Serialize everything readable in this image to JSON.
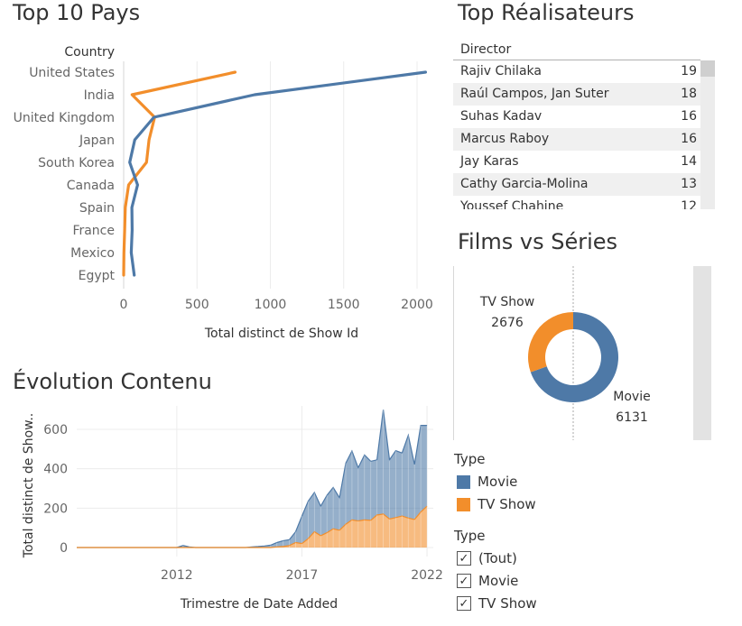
{
  "titles": {
    "top_countries": "Top 10 Pays",
    "top_directors": "Top Réalisateurs",
    "donut": "Films vs Séries",
    "evolution": "Évolution Contenu"
  },
  "colors": {
    "movie": "#4e79a7",
    "tv_show": "#f28e2b"
  },
  "directors": {
    "header": "Director",
    "rows": [
      {
        "name": "Rajiv Chilaka",
        "count": "19"
      },
      {
        "name": "Raúl Campos, Jan Suter",
        "count": "18"
      },
      {
        "name": "Suhas Kadav",
        "count": "16"
      },
      {
        "name": "Marcus Raboy",
        "count": "16"
      },
      {
        "name": "Jay Karas",
        "count": "14"
      },
      {
        "name": "Cathy Garcia-Molina",
        "count": "13"
      },
      {
        "name": "Youssef Chahine",
        "count": "12"
      }
    ]
  },
  "legend_type": {
    "title": "Type",
    "items": [
      {
        "label": "Movie",
        "color": "#4e79a7"
      },
      {
        "label": "TV Show",
        "color": "#f28e2b"
      }
    ]
  },
  "filter_type": {
    "title": "Type",
    "items": [
      {
        "label": "(Tout)",
        "checked": true
      },
      {
        "label": "Movie",
        "checked": true
      },
      {
        "label": "TV Show",
        "checked": true
      }
    ]
  },
  "chart_data": [
    {
      "id": "countries",
      "type": "line",
      "title": "Top 10 Pays",
      "ylabel": "Country",
      "xlabel": "Total distinct de Show Id",
      "categories": [
        "United States",
        "India",
        "United Kingdom",
        "Japan",
        "South Korea",
        "Canada",
        "Spain",
        "France",
        "Mexico",
        "Egypt"
      ],
      "x_ticks": [
        0,
        500,
        1000,
        1500,
        2000
      ],
      "xlim": [
        0,
        2100
      ],
      "grid": true,
      "series": [
        {
          "name": "Movie",
          "color": "#4e79a7",
          "values": [
            2058,
            893,
            206,
            76,
            41,
            95,
            56,
            58,
            52,
            72
          ]
        },
        {
          "name": "TV Show",
          "color": "#f28e2b",
          "values": [
            760,
            57,
            211,
            173,
            156,
            34,
            11,
            7,
            2,
            0
          ]
        }
      ]
    },
    {
      "id": "donut",
      "type": "pie",
      "title": "Films vs Séries",
      "series": [
        {
          "name": "TV Show",
          "value": 2676,
          "label": "2676",
          "color": "#f28e2b"
        },
        {
          "name": "Movie",
          "value": 6131,
          "label": "6131",
          "color": "#4e79a7"
        }
      ]
    },
    {
      "id": "evolution",
      "type": "area",
      "title": "Évolution Contenu",
      "xlabel": "Trimestre de Date Added",
      "ylabel": "Total distinct de Show..",
      "x_ticks": [
        2012,
        2017,
        2022
      ],
      "y_ticks": [
        0,
        200,
        400,
        600
      ],
      "ylim": [
        0,
        680
      ],
      "xlim": [
        2008.0,
        2022.25
      ],
      "grid": true,
      "x": [
        2008.0,
        2008.25,
        2008.5,
        2008.75,
        2009.0,
        2009.25,
        2009.5,
        2009.75,
        2010.0,
        2010.25,
        2010.5,
        2010.75,
        2011.0,
        2011.25,
        2011.5,
        2011.75,
        2012.0,
        2012.25,
        2012.5,
        2012.75,
        2013.0,
        2013.25,
        2013.5,
        2013.75,
        2014.0,
        2014.25,
        2014.5,
        2014.75,
        2015.0,
        2015.25,
        2015.5,
        2015.75,
        2016.0,
        2016.25,
        2016.5,
        2016.75,
        2017.0,
        2017.25,
        2017.5,
        2017.75,
        2018.0,
        2018.25,
        2018.5,
        2018.75,
        2019.0,
        2019.25,
        2019.5,
        2019.75,
        2020.0,
        2020.25,
        2020.5,
        2020.75,
        2021.0,
        2021.25,
        2021.5,
        2021.75,
        2022.0
      ],
      "series": [
        {
          "name": "TV Show",
          "color": "#f28e2b",
          "values": [
            0,
            0,
            0,
            0,
            0,
            0,
            0,
            0,
            0,
            0,
            0,
            0,
            0,
            0,
            0,
            0,
            0,
            0,
            0,
            0,
            0,
            0,
            0,
            0,
            0,
            0,
            0,
            0,
            0,
            0,
            0,
            0,
            3,
            5,
            10,
            25,
            20,
            45,
            80,
            60,
            75,
            95,
            88,
            118,
            140,
            135,
            140,
            138,
            165,
            170,
            145,
            152,
            160,
            150,
            142,
            180,
            210
          ]
        },
        {
          "name": "Movie",
          "color": "#4e79a7",
          "values": [
            0,
            0,
            0,
            0,
            0,
            0,
            0,
            0,
            0,
            0,
            0,
            0,
            0,
            0,
            0,
            0,
            0,
            10,
            3,
            0,
            0,
            0,
            0,
            0,
            0,
            0,
            0,
            0,
            3,
            5,
            8,
            12,
            22,
            30,
            30,
            55,
            140,
            190,
            200,
            150,
            190,
            210,
            165,
            310,
            350,
            270,
            330,
            300,
            280,
            530,
            300,
            340,
            320,
            420,
            280,
            440,
            410
          ]
        }
      ]
    }
  ]
}
